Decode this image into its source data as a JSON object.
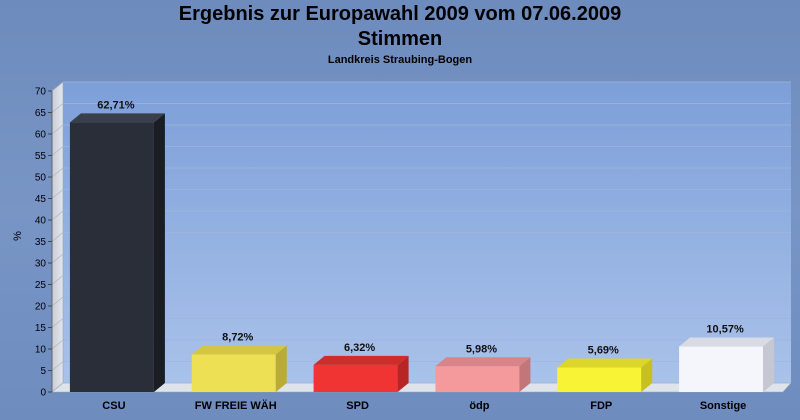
{
  "title": "Ergebnis zur Europawahl 2009 vom 07.06.2009",
  "subtitle": "Stimmen",
  "region": "Landkreis Straubing-Bogen",
  "chart_data": {
    "type": "bar",
    "title": "Ergebnis zur Europawahl 2009 vom 07.06.2009",
    "subtitle": "Stimmen",
    "annotation": "Landkreis Straubing-Bogen",
    "xlabel": "",
    "ylabel": "%",
    "ylim": [
      0,
      70
    ],
    "yticks": [
      0,
      5,
      10,
      15,
      20,
      25,
      30,
      35,
      40,
      45,
      50,
      55,
      60,
      65,
      70
    ],
    "grid": true,
    "categories": [
      "CSU",
      "FW FREIE WÄH",
      "SPD",
      "ödp",
      "FDP",
      "Sonstige"
    ],
    "values": [
      62.71,
      8.72,
      6.32,
      5.98,
      5.69,
      10.57
    ],
    "value_labels": [
      "62,71%",
      "8,72%",
      "6,32%",
      "5,98%",
      "5,69%",
      "10,57%"
    ],
    "colors": [
      "#2a2e38",
      "#ede055",
      "#f03434",
      "#f59a9c",
      "#f8f435",
      "#f4f6fb"
    ],
    "colors_side": [
      "#1a1d24",
      "#b9ab33",
      "#b82525",
      "#c2767a",
      "#c6c120",
      "#c5c8d2"
    ],
    "colors_top": [
      "#3a3f4c",
      "#d4c645",
      "#cf2c2c",
      "#d98488",
      "#dcd52a",
      "#d8dbe3"
    ]
  }
}
